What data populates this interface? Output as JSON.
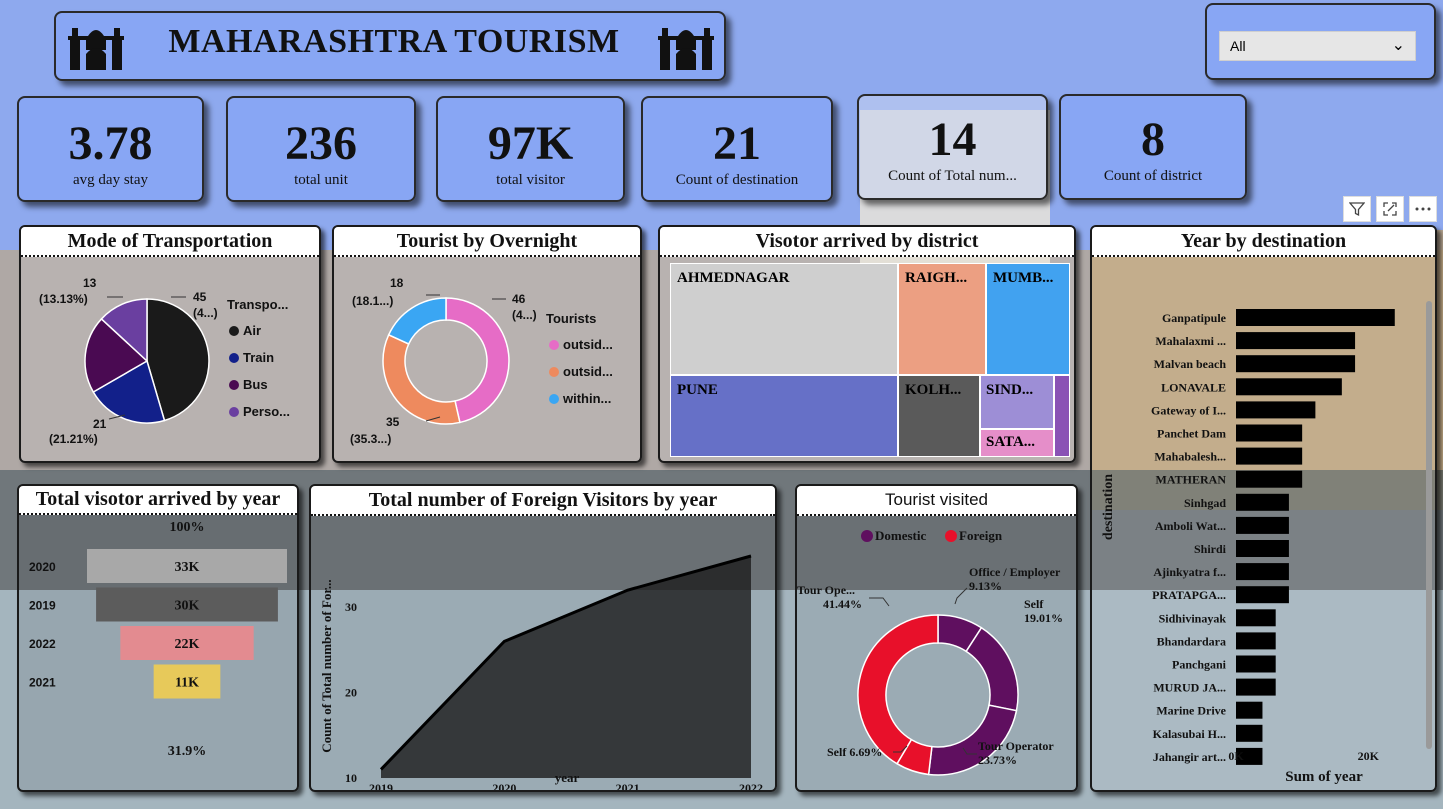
{
  "header": {
    "title": "MAHARASHTRA TOURISM"
  },
  "slicer": {
    "value": "All"
  },
  "kpis": [
    {
      "value": "3.78",
      "label": "avg day stay"
    },
    {
      "value": "236",
      "label": "total unit"
    },
    {
      "value": "97K",
      "label": "total visitor"
    },
    {
      "value": "21",
      "label": "Count of destination"
    },
    {
      "value": "14",
      "label": "Count of Total num..."
    },
    {
      "value": "8",
      "label": "Count of district"
    }
  ],
  "transport": {
    "title": "Mode of Transportation",
    "legend_title": "Transpo...",
    "legend": [
      "Air",
      "Train",
      "Bus",
      "Perso..."
    ],
    "labels": [
      {
        "value": "45",
        "pct": "(4...)"
      },
      {
        "value": "21",
        "pct": "(21.21%)"
      },
      {
        "value": "13",
        "pct": "(13.13%)"
      }
    ]
  },
  "overnight": {
    "title": "Tourist by Overnight",
    "legend_title": "Tourists",
    "legend": [
      "outsid...",
      "outsid...",
      "within..."
    ],
    "labels": [
      {
        "value": "46",
        "pct": "(4...)"
      },
      {
        "value": "35",
        "pct": "(35.3...)"
      },
      {
        "value": "18",
        "pct": "(18.1...)"
      }
    ]
  },
  "district": {
    "title": "Visotor arrived by district",
    "tiles": [
      "AHMEDNAGAR",
      "RAIGH...",
      "MUMB...",
      "PUNE",
      "KOLH...",
      "SIND...",
      "SATA..."
    ]
  },
  "year_funnel": {
    "title": "Total visotor arrived by year",
    "top_pct": "100%",
    "bottom_pct": "31.9%",
    "rows": [
      {
        "year": "2020",
        "label": "33K"
      },
      {
        "year": "2019",
        "label": "30K"
      },
      {
        "year": "2022",
        "label": "22K"
      },
      {
        "year": "2021",
        "label": "11K"
      }
    ]
  },
  "foreign": {
    "title": "Total number of Foreign Visitors by year",
    "xlabel": "year",
    "ylabel": "Count of Total number of For...",
    "ytick_labels": [
      "10",
      "20",
      "30"
    ]
  },
  "visited": {
    "title": "Tourist visited",
    "legend": [
      "Domestic",
      "Foreign"
    ],
    "labels": [
      {
        "name": "Office / Employer",
        "pct": "9.13%"
      },
      {
        "name": "Self",
        "pct": "19.01%"
      },
      {
        "name": "Tour Operator",
        "pct": "23.73%"
      },
      {
        "name": "Self 6.69%",
        "pct": ""
      },
      {
        "name": "Tour Ope...",
        "pct": "41.44%"
      }
    ]
  },
  "destination": {
    "title": "Year by destination",
    "ylabel": "destination",
    "xlabel": "Sum of year",
    "xtick_labels": [
      "0K",
      "20K"
    ]
  },
  "chart_data": [
    {
      "type": "pie",
      "title": "Mode of Transportation",
      "categories": [
        "Air",
        "Train",
        "Bus",
        "Perso..."
      ],
      "values": [
        45,
        21,
        20,
        13
      ],
      "colors": [
        "#1a1a1a",
        "#12208a",
        "#4a0a52",
        "#6a3fa0"
      ]
    },
    {
      "type": "pie",
      "title": "Tourist by Overnight",
      "categories": [
        "outsid...",
        "outsid...",
        "within..."
      ],
      "values": [
        46,
        35,
        18
      ],
      "colors": [
        "#e66cc6",
        "#ee8a5e",
        "#3aa6f3"
      ]
    },
    {
      "type": "heatmap",
      "title": "Visotor arrived by district",
      "categories": [
        "AHMEDNAGAR",
        "RAIGH...",
        "MUMB...",
        "PUNE",
        "KOLH...",
        "SIND...",
        "SATA..."
      ],
      "colors": [
        "#cfcfcf",
        "#ec9f82",
        "#41a2f0",
        "#6670c7",
        "#5a5a5a",
        "#9d8ed6",
        "#e58ec9"
      ]
    },
    {
      "type": "bar",
      "title": "Total visotor arrived by year",
      "categories": [
        "2020",
        "2019",
        "2022",
        "2021"
      ],
      "values": [
        33000,
        30000,
        22000,
        11000
      ],
      "colors": [
        "#a8a8a8",
        "#5c5c5c",
        "#e38b90",
        "#e7c95a"
      ]
    },
    {
      "type": "area",
      "title": "Total number of Foreign Visitors by year",
      "x": [
        "2019",
        "2020",
        "2021",
        "2022"
      ],
      "values": [
        11,
        26,
        32,
        36
      ],
      "ylim": [
        10,
        36
      ],
      "xlabel": "year",
      "ylabel": "Count of Total number of For..."
    },
    {
      "type": "pie",
      "title": "Tourist visited",
      "categories": [
        "Office / Employer",
        "Self",
        "Tour Operator",
        "Self",
        "Tour Ope..."
      ],
      "values": [
        9.13,
        19.01,
        23.73,
        6.69,
        41.44
      ],
      "colors": [
        "#5f0f5f",
        "#5f0f5f",
        "#5f0f5f",
        "#e8102a",
        "#e8102a"
      ]
    },
    {
      "type": "bar",
      "title": "Year by destination",
      "categories": [
        "Ganpatipule",
        "Mahalaxmi ...",
        "Malvan beach",
        "LONAVALE",
        "Gateway of I...",
        "Panchet Dam",
        "Mahabalesh...",
        "MATHERAN",
        "Sinhgad",
        "Amboli Wat...",
        "Shirdi",
        "Ajinkyatra f...",
        "PRATAPGA...",
        "Sidhivinayak",
        "Bhandardara",
        "Panchgani",
        "MURUD JA...",
        "Marine Drive",
        "Kalasubai H...",
        "Jahangir art..."
      ],
      "values": [
        24000,
        18000,
        18000,
        16000,
        12000,
        10000,
        10000,
        10000,
        8000,
        8000,
        8000,
        8000,
        8000,
        6000,
        6000,
        6000,
        6000,
        4000,
        4000,
        4000
      ],
      "xlim": [
        0,
        26000
      ],
      "xlabel": "Sum of year",
      "ylabel": "destination"
    }
  ]
}
